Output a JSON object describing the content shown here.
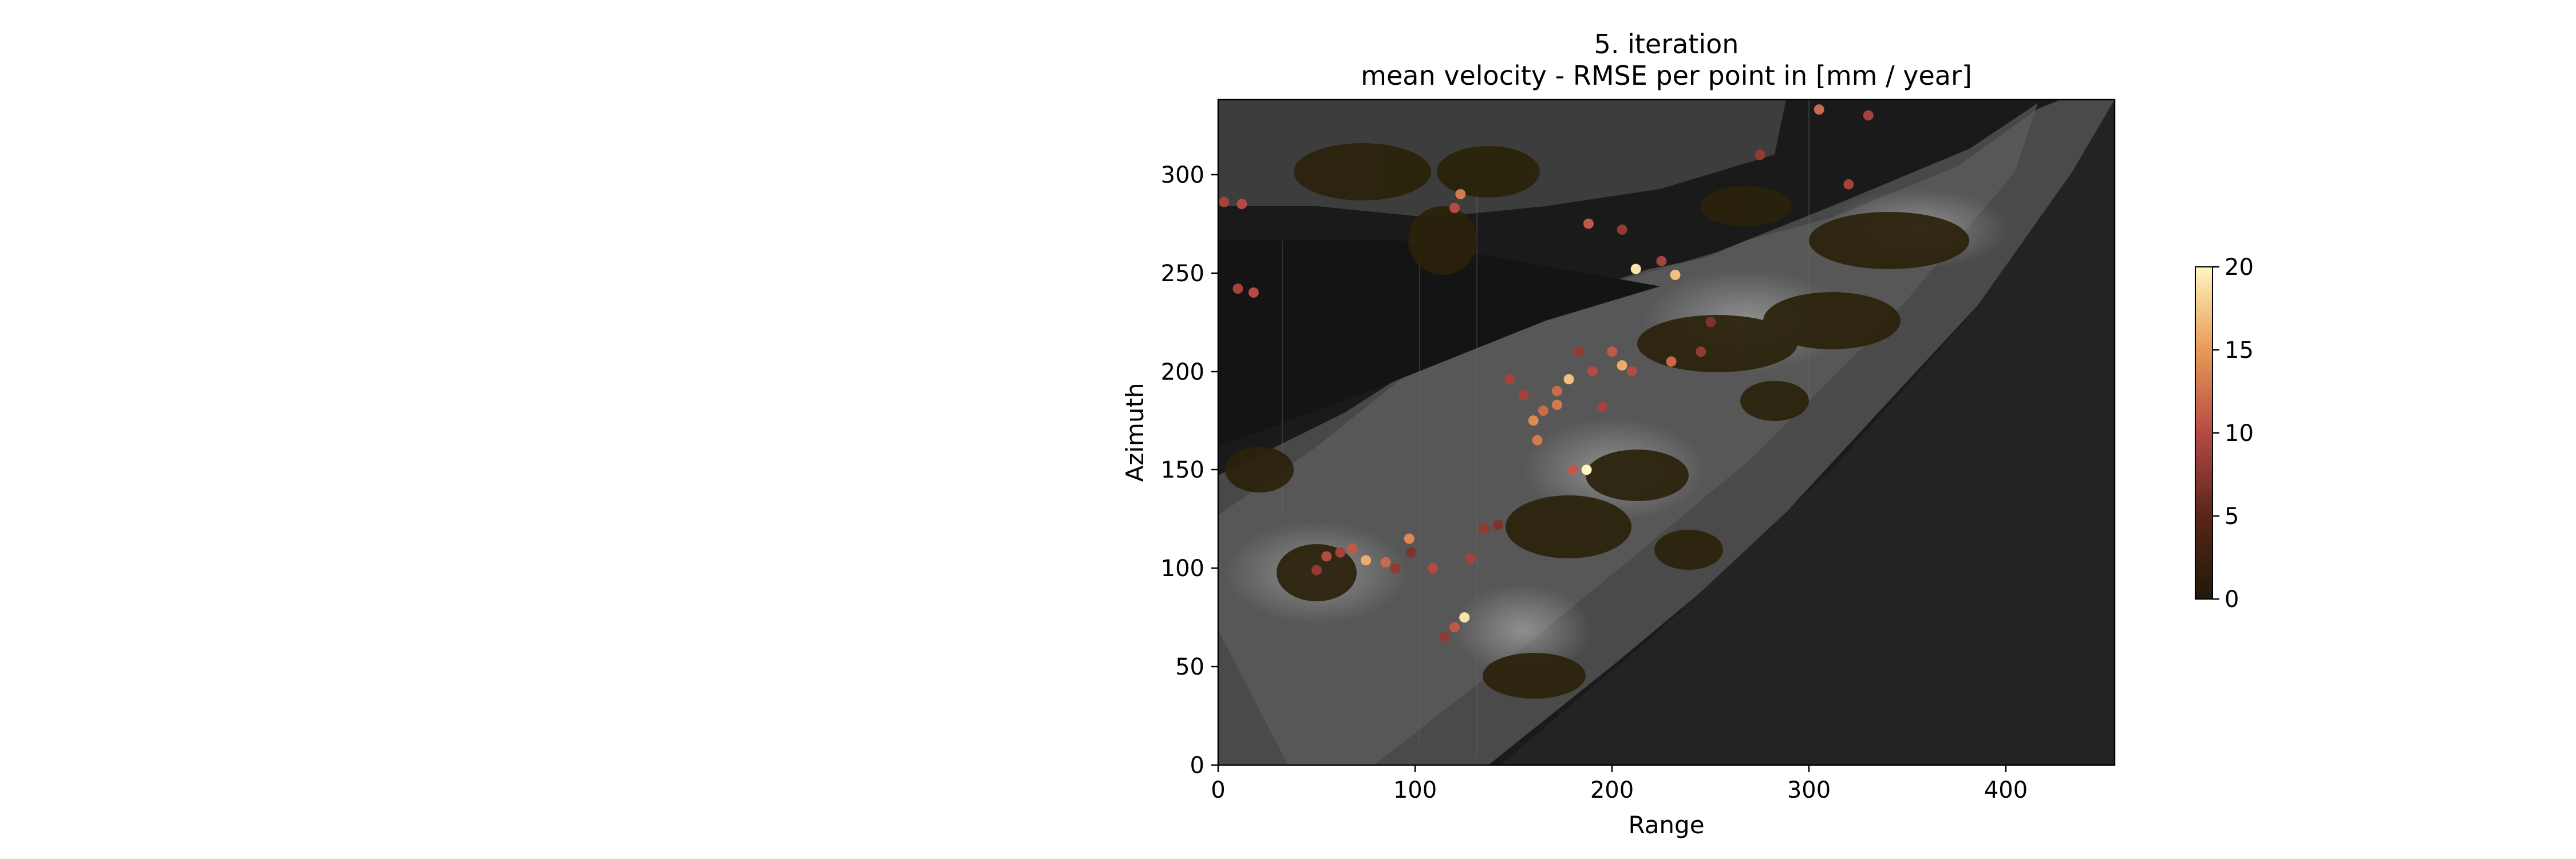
{
  "chart_data": {
    "type": "scatter",
    "title": "5. iteration",
    "subtitle": "mean velocity - RMSE per point in [mm / year]",
    "xlabel": "Range",
    "ylabel": "Azimuth",
    "xlim": [
      0,
      455
    ],
    "ylim": [
      0,
      338
    ],
    "x_ticks": [
      "0",
      "100",
      "200",
      "300",
      "400"
    ],
    "y_ticks": [
      "0",
      "50",
      "100",
      "150",
      "200",
      "250",
      "300"
    ],
    "background": "grayscale SAR amplitude image",
    "colorbar": {
      "colormap": "afmhot",
      "range": [
        0,
        20
      ],
      "ticks": [
        "0",
        "5",
        "10",
        "15",
        "20"
      ],
      "colors": [
        "#1e1a08",
        "#5a2518",
        "#b54a45",
        "#e89a55",
        "#fff6c0"
      ]
    },
    "points": [
      {
        "x": 85,
        "y": 103,
        "v": 12
      },
      {
        "x": 97,
        "y": 115,
        "v": 14
      },
      {
        "x": 75,
        "y": 104,
        "v": 16
      },
      {
        "x": 62,
        "y": 108,
        "v": 9
      },
      {
        "x": 50,
        "y": 99,
        "v": 8
      },
      {
        "x": 55,
        "y": 106,
        "v": 10
      },
      {
        "x": 180,
        "y": 150,
        "v": 11
      },
      {
        "x": 187,
        "y": 150,
        "v": 20
      },
      {
        "x": 160,
        "y": 175,
        "v": 14
      },
      {
        "x": 165,
        "y": 180,
        "v": 12
      },
      {
        "x": 172,
        "y": 183,
        "v": 13
      },
      {
        "x": 155,
        "y": 188,
        "v": 9
      },
      {
        "x": 190,
        "y": 200,
        "v": 10
      },
      {
        "x": 200,
        "y": 210,
        "v": 11
      },
      {
        "x": 205,
        "y": 203,
        "v": 16
      },
      {
        "x": 178,
        "y": 196,
        "v": 17
      },
      {
        "x": 172,
        "y": 190,
        "v": 12
      },
      {
        "x": 148,
        "y": 196,
        "v": 9
      },
      {
        "x": 212,
        "y": 252,
        "v": 19
      },
      {
        "x": 232,
        "y": 249,
        "v": 17
      },
      {
        "x": 188,
        "y": 275,
        "v": 11
      },
      {
        "x": 205,
        "y": 272,
        "v": 8
      },
      {
        "x": 225,
        "y": 256,
        "v": 9
      },
      {
        "x": 123,
        "y": 290,
        "v": 13
      },
      {
        "x": 120,
        "y": 283,
        "v": 10
      },
      {
        "x": 305,
        "y": 333,
        "v": 12
      },
      {
        "x": 330,
        "y": 330,
        "v": 9
      },
      {
        "x": 18,
        "y": 240,
        "v": 10
      },
      {
        "x": 10,
        "y": 242,
        "v": 9
      },
      {
        "x": 12,
        "y": 285,
        "v": 10
      },
      {
        "x": 3,
        "y": 286,
        "v": 9
      },
      {
        "x": 135,
        "y": 120,
        "v": 8
      },
      {
        "x": 128,
        "y": 105,
        "v": 9
      },
      {
        "x": 120,
        "y": 70,
        "v": 11
      },
      {
        "x": 125,
        "y": 75,
        "v": 19
      },
      {
        "x": 115,
        "y": 65,
        "v": 8
      },
      {
        "x": 142,
        "y": 122,
        "v": 7
      },
      {
        "x": 162,
        "y": 165,
        "v": 13
      },
      {
        "x": 230,
        "y": 205,
        "v": 12
      },
      {
        "x": 245,
        "y": 210,
        "v": 8
      },
      {
        "x": 98,
        "y": 108,
        "v": 7
      },
      {
        "x": 109,
        "y": 100,
        "v": 10
      },
      {
        "x": 320,
        "y": 295,
        "v": 9
      },
      {
        "x": 275,
        "y": 310,
        "v": 8
      },
      {
        "x": 250,
        "y": 225,
        "v": 7
      },
      {
        "x": 195,
        "y": 182,
        "v": 9
      },
      {
        "x": 183,
        "y": 210,
        "v": 8
      },
      {
        "x": 210,
        "y": 200,
        "v": 10
      },
      {
        "x": 68,
        "y": 110,
        "v": 11
      },
      {
        "x": 90,
        "y": 100,
        "v": 8
      }
    ]
  }
}
